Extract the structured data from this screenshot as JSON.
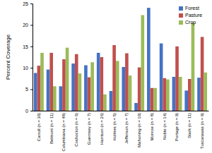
{
  "chart_data": {
    "type": "bar",
    "y_label": "Percent Coverage",
    "categories": [
      "Carroll (n = 30)",
      "Belmont (n = 11)",
      "Columbiana (n = 48)",
      "Coshocton (n = 6)",
      "Guernsey (n = 7)",
      "Harrison (n = 26)",
      "Holmes (n = 5)",
      "Jefferson (n = 7)",
      "Mahoning (n = 10)",
      "Monroe (n = 8)",
      "Noble (n = 14)",
      "Portage (n = 9)",
      "Stark (n = 11)",
      "Tuscarawas (n = 9)"
    ],
    "series": [
      {
        "name": "Forest",
        "color": "#4472c4",
        "values": [
          8.8,
          9.6,
          5.7,
          11,
          10.6,
          13.5,
          4.6,
          10.2,
          1.8,
          24,
          15.7,
          7.9,
          4.7,
          7.7
        ]
      },
      {
        "name": "Pasture",
        "color": "#c0504d",
        "values": [
          10.5,
          13.5,
          12,
          13.2,
          7.8,
          12.5,
          15.3,
          13.4,
          10.1,
          5.3,
          7.6,
          15,
          7.4,
          17.2
        ]
      },
      {
        "name": "Crop",
        "color": "#9bbb59",
        "values": [
          13.5,
          5.7,
          14.7,
          8.7,
          11.3,
          3.8,
          11.6,
          8.2,
          22.3,
          5.3,
          7.3,
          7.9,
          20.5,
          8.9
        ]
      }
    ],
    "ylim": [
      0,
      25
    ],
    "yticks": [
      0,
      5,
      10,
      15,
      20,
      25
    ],
    "grid": false,
    "legend": "upper right"
  }
}
